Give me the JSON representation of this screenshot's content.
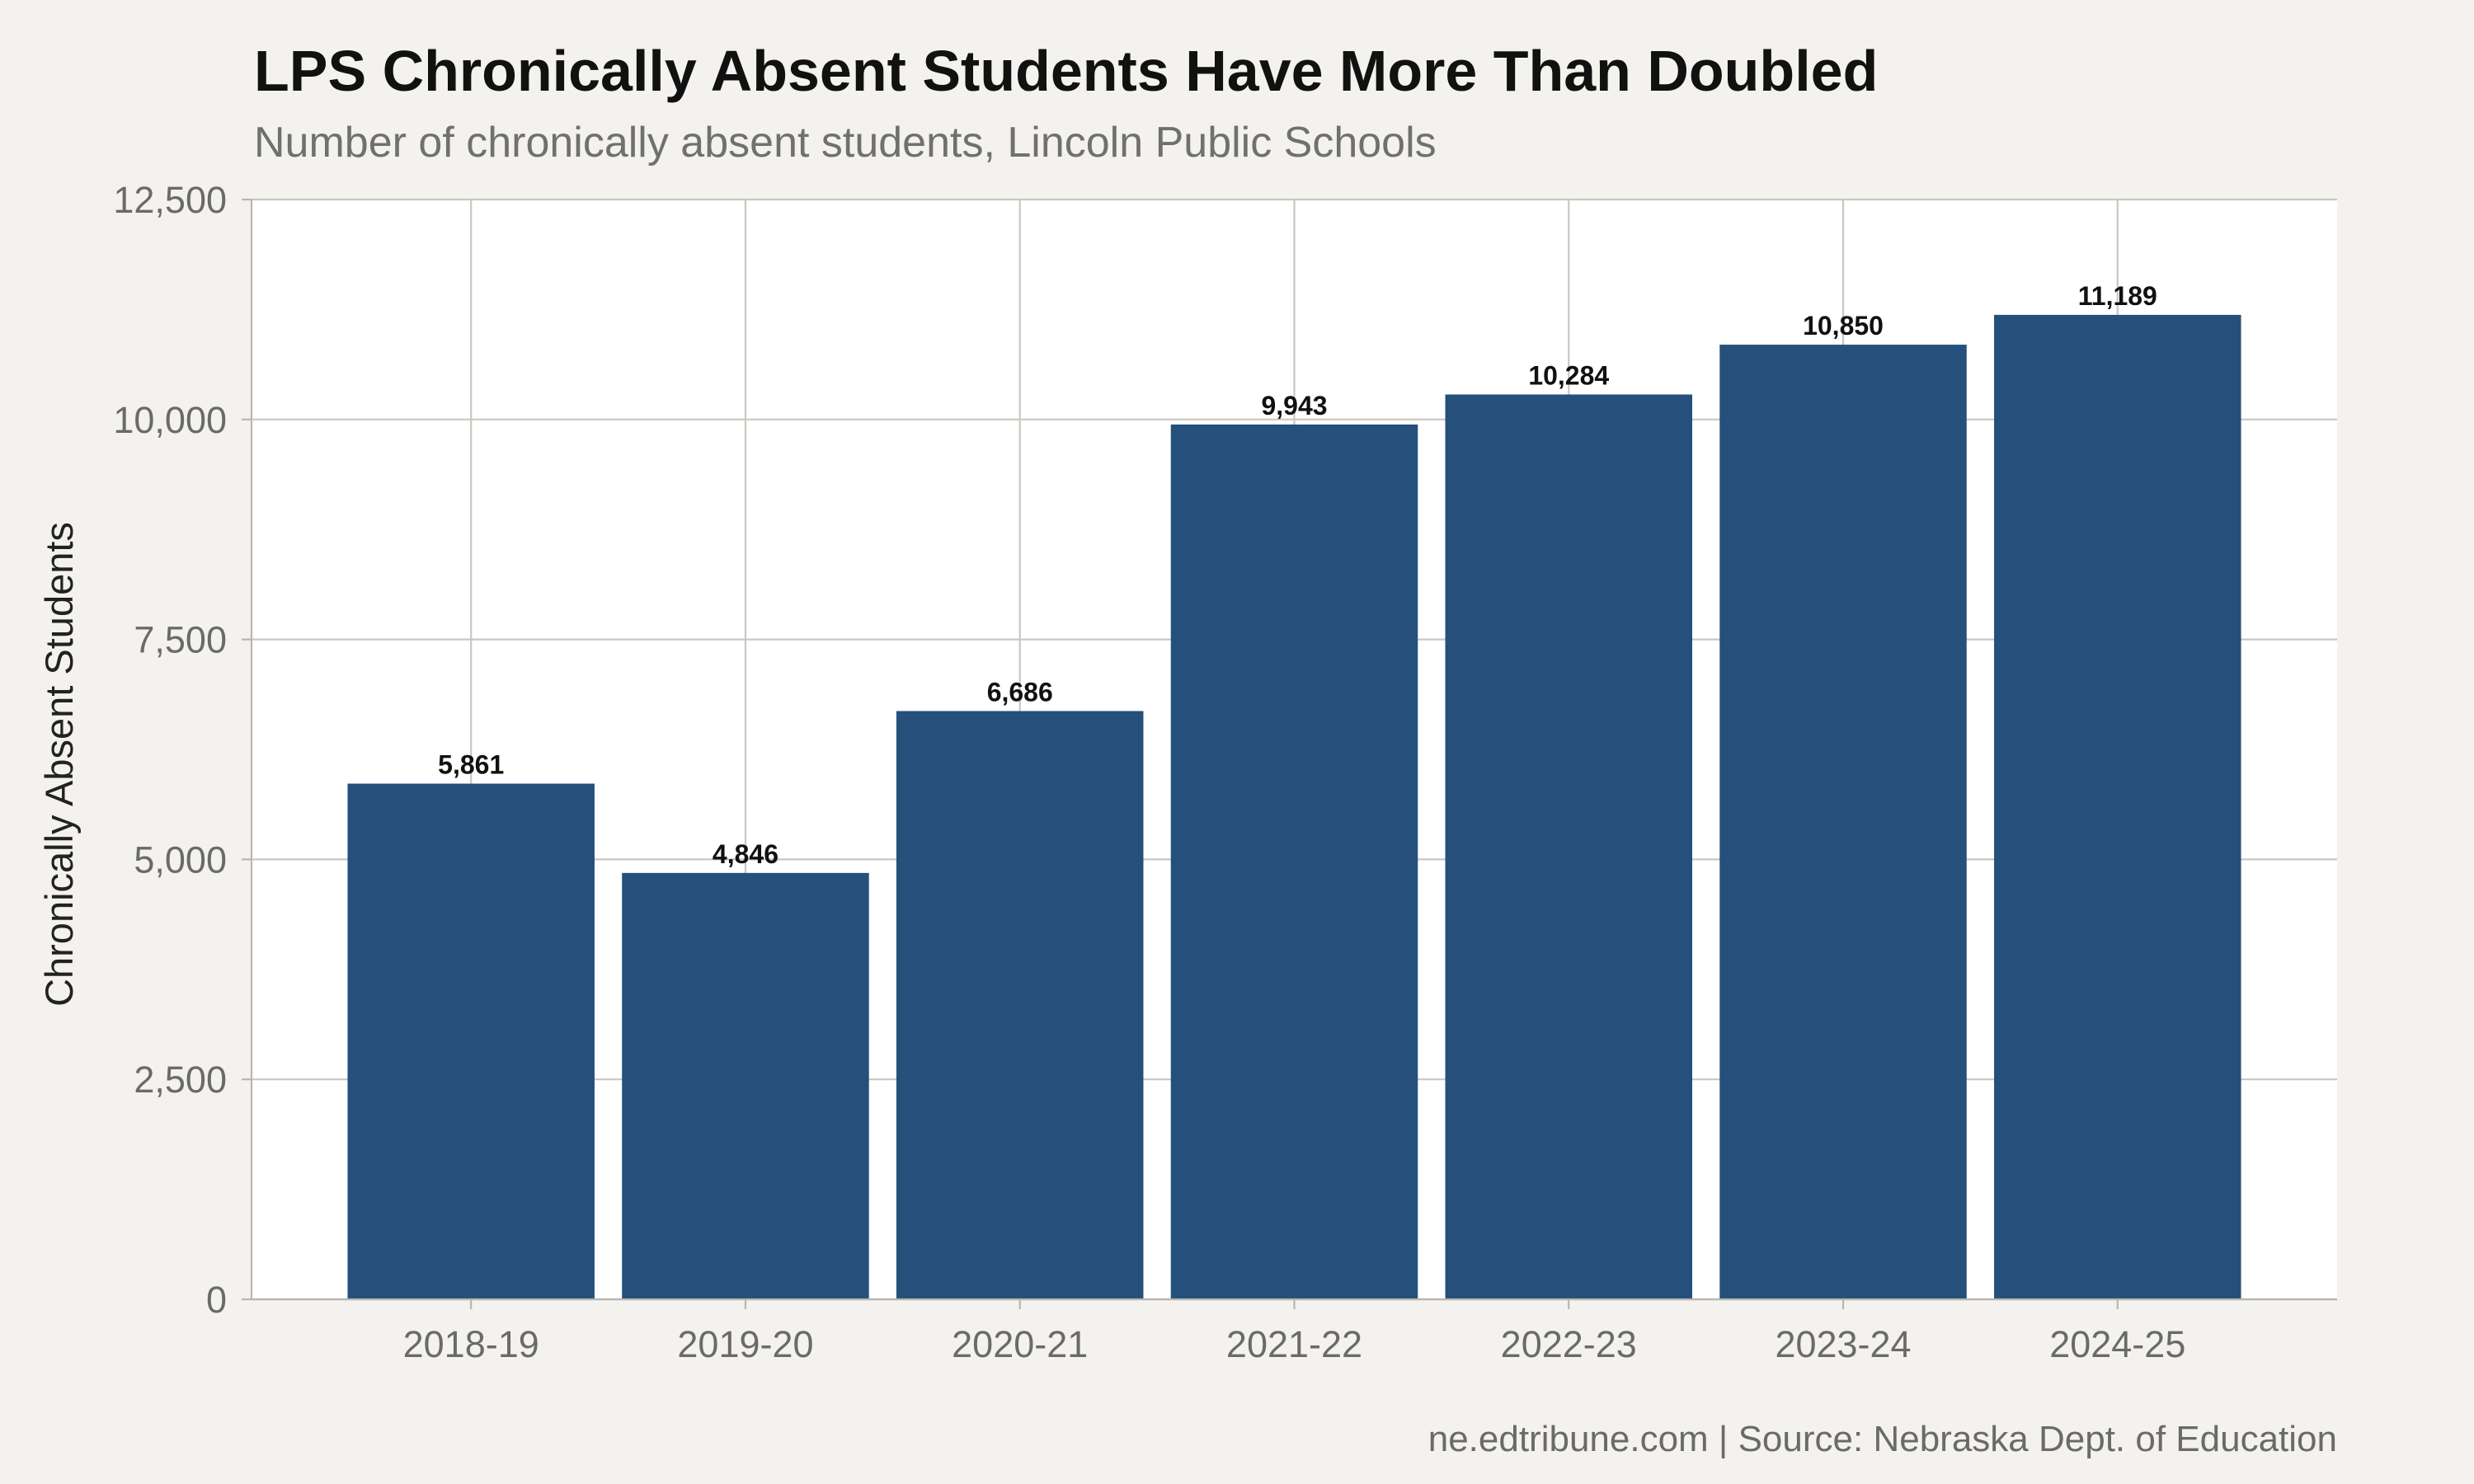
{
  "chart_data": {
    "type": "bar",
    "title": "LPS Chronically Absent Students Have More Than Doubled",
    "subtitle": "Number of chronically absent students, Lincoln Public Schools",
    "ylabel": "Chronically Absent Students",
    "xlabel": "",
    "categories": [
      "2018-19",
      "2019-20",
      "2020-21",
      "2021-22",
      "2022-23",
      "2023-24",
      "2024-25"
    ],
    "values": [
      5861,
      4846,
      6686,
      9943,
      10284,
      10850,
      11189
    ],
    "value_labels": [
      "5,861",
      "4,846",
      "6,686",
      "9,943",
      "10,284",
      "10,850",
      "11,189"
    ],
    "ylim": [
      0,
      12500
    ],
    "yticks": [
      0,
      2500,
      5000,
      7500,
      10000,
      12500
    ],
    "ytick_labels": [
      "0",
      "2,500",
      "5,000",
      "7,500",
      "10,000",
      "12,500"
    ],
    "grid": true,
    "bar_color": "#24507b",
    "panel_background": "#ffffff",
    "page_background": "#f4f2ee",
    "caption": "ne.edtribune.com | Source: Nebraska Dept. of Education"
  }
}
